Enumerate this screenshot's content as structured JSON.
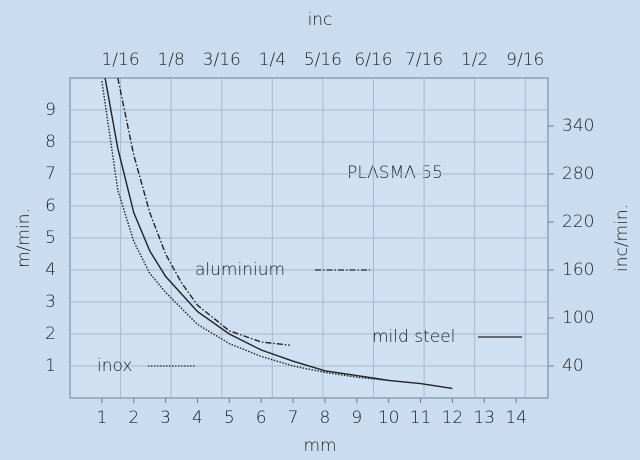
{
  "chart_data": {
    "type": "line",
    "annotation": "PLASMA 55",
    "x_label": "mm",
    "x2_label": "inc",
    "y_label": "m/min.",
    "y2_label": "inc/min.",
    "xlim": [
      0,
      15
    ],
    "xticks": [
      1,
      2,
      3,
      4,
      5,
      6,
      7,
      8,
      9,
      10,
      11,
      12,
      13,
      14
    ],
    "x2lim": [
      0,
      0.5906
    ],
    "x2ticks": [
      {
        "value": 0.0625,
        "label": "1/16"
      },
      {
        "value": 0.125,
        "label": "1/8"
      },
      {
        "value": 0.1875,
        "label": "3/16"
      },
      {
        "value": 0.25,
        "label": "1/4"
      },
      {
        "value": 0.3125,
        "label": "5/16"
      },
      {
        "value": 0.375,
        "label": "6/16"
      },
      {
        "value": 0.4375,
        "label": "7/16"
      },
      {
        "value": 0.5,
        "label": "1/2"
      },
      {
        "value": 0.5625,
        "label": "9/16"
      }
    ],
    "ylim": [
      0,
      10
    ],
    "yticks": [
      1,
      2,
      3,
      4,
      5,
      6,
      7,
      8,
      9
    ],
    "y2lim": [
      0,
      400
    ],
    "y2ticks": [
      40,
      100,
      160,
      220,
      280,
      340
    ],
    "grid": true,
    "series": [
      {
        "name": "aluminium",
        "color": "#222222",
        "style": "dashdot",
        "x": [
          1.5,
          2,
          2.5,
          3,
          3.5,
          4,
          5,
          6,
          6.9
        ],
        "values": [
          10,
          7.6,
          5.8,
          4.5,
          3.6,
          2.9,
          2.1,
          1.75,
          1.65
        ]
      },
      {
        "name": "mild steel",
        "color": "#222222",
        "style": "solid",
        "x": [
          1.1,
          1.5,
          2,
          2.5,
          3,
          4,
          5,
          6,
          7,
          8,
          9,
          10,
          11,
          12
        ],
        "values": [
          10,
          7.8,
          5.8,
          4.6,
          3.8,
          2.7,
          2.0,
          1.5,
          1.15,
          0.85,
          0.7,
          0.55,
          0.45,
          0.3
        ]
      },
      {
        "name": "inox",
        "color": "#222222",
        "style": "dotted",
        "x": [
          1.0,
          1.5,
          2,
          2.5,
          3,
          4,
          5,
          6,
          7,
          8,
          9,
          10
        ],
        "values": [
          9.9,
          6.5,
          4.9,
          3.9,
          3.3,
          2.3,
          1.7,
          1.3,
          1.0,
          0.8,
          0.65,
          0.55
        ]
      }
    ]
  }
}
